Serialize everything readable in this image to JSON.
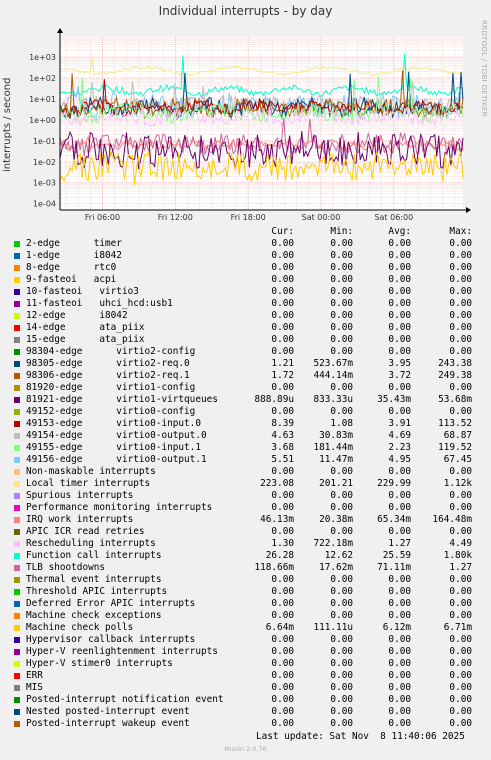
{
  "title": "Individual interrupts - by day",
  "side_text": "RRDTOOL / TOBI OETIKER",
  "ylabel": "interrupts / second",
  "columns": {
    "cur": "Cur:",
    "min": "Min:",
    "avg": "Avg:",
    "max": "Max:"
  },
  "footer": "Last update: Sat Nov  8 11:40:06 2025",
  "munin": "Munin 2.0.76",
  "legend": [
    {
      "name": "2-edge      timer",
      "color": "#00cc00",
      "cur": "0.00",
      "min": "0.00",
      "avg": "0.00",
      "max": "0.00"
    },
    {
      "name": "1-edge      i8042",
      "color": "#0066b3",
      "cur": "0.00",
      "min": "0.00",
      "avg": "0.00",
      "max": "0.00"
    },
    {
      "name": "8-edge      rtc0",
      "color": "#ff8000",
      "cur": "0.00",
      "min": "0.00",
      "avg": "0.00",
      "max": "0.00"
    },
    {
      "name": "9-fasteoi   acpi",
      "color": "#ffcc00",
      "cur": "0.00",
      "min": "0.00",
      "avg": "0.00",
      "max": "0.00"
    },
    {
      "name": "10-fasteoi   virtio3",
      "color": "#330099",
      "cur": "0.00",
      "min": "0.00",
      "avg": "0.00",
      "max": "0.00"
    },
    {
      "name": "11-fasteoi   uhci_hcd:usb1",
      "color": "#990099",
      "cur": "0.00",
      "min": "0.00",
      "avg": "0.00",
      "max": "0.00"
    },
    {
      "name": "12-edge      i8042",
      "color": "#ccff00",
      "cur": "0.00",
      "min": "0.00",
      "avg": "0.00",
      "max": "0.00"
    },
    {
      "name": "14-edge      ata_piix",
      "color": "#ff0000",
      "cur": "0.00",
      "min": "0.00",
      "avg": "0.00",
      "max": "0.00"
    },
    {
      "name": "15-edge      ata_piix",
      "color": "#808080",
      "cur": "0.00",
      "min": "0.00",
      "avg": "0.00",
      "max": "0.00"
    },
    {
      "name": "98304-edge      virtio2-config",
      "color": "#008f00",
      "cur": "0.00",
      "min": "0.00",
      "avg": "0.00",
      "max": "0.00"
    },
    {
      "name": "98305-edge      virtio2-req.0",
      "color": "#00487d",
      "cur": "1.21",
      "min": "523.67m",
      "avg": "3.95",
      "max": "243.38"
    },
    {
      "name": "98306-edge      virtio2-req.1",
      "color": "#b35a00",
      "cur": "1.72",
      "min": "444.14m",
      "avg": "3.72",
      "max": "249.38"
    },
    {
      "name": "81920-edge      virtio1-config",
      "color": "#b38f00",
      "cur": "0.00",
      "min": "0.00",
      "avg": "0.00",
      "max": "0.00"
    },
    {
      "name": "81921-edge      virtio1-virtqueues",
      "color": "#6b006b",
      "cur": "888.89u",
      "min": "833.33u",
      "avg": "35.43m",
      "max": "53.68m"
    },
    {
      "name": "49152-edge      virtio0-config",
      "color": "#8fb300",
      "cur": "0.00",
      "min": "0.00",
      "avg": "0.00",
      "max": "0.00"
    },
    {
      "name": "49153-edge      virtio0-input.0",
      "color": "#b30000",
      "cur": "8.39",
      "min": "1.08",
      "avg": "3.91",
      "max": "113.52"
    },
    {
      "name": "49154-edge      virtio0-output.0",
      "color": "#bebebe",
      "cur": "4.63",
      "min": "30.83m",
      "avg": "4.69",
      "max": "68.87"
    },
    {
      "name": "49155-edge      virtio0-input.1",
      "color": "#80ff80",
      "cur": "3.68",
      "min": "181.44m",
      "avg": "2.23",
      "max": "119.52"
    },
    {
      "name": "49156-edge      virtio0-output.1",
      "color": "#80c9ff",
      "cur": "5.51",
      "min": "11.47m",
      "avg": "4.95",
      "max": "67.45"
    },
    {
      "name": "Non-maskable interrupts",
      "color": "#ffc080",
      "cur": "0.00",
      "min": "0.00",
      "avg": "0.00",
      "max": "0.00"
    },
    {
      "name": "Local timer interrupts",
      "color": "#ffe680",
      "cur": "223.08",
      "min": "201.21",
      "avg": "229.99",
      "max": "1.12k"
    },
    {
      "name": "Spurious interrupts",
      "color": "#aa80ff",
      "cur": "0.00",
      "min": "0.00",
      "avg": "0.00",
      "max": "0.00"
    },
    {
      "name": "Performance monitoring interrupts",
      "color": "#ee00cc",
      "cur": "0.00",
      "min": "0.00",
      "avg": "0.00",
      "max": "0.00"
    },
    {
      "name": "IRQ work interrupts",
      "color": "#ff8080",
      "cur": "46.13m",
      "min": "20.38m",
      "avg": "65.34m",
      "max": "164.48m"
    },
    {
      "name": "APIC ICR read retries",
      "color": "#666600",
      "cur": "0.00",
      "min": "0.00",
      "avg": "0.00",
      "max": "0.00"
    },
    {
      "name": "Rescheduling interrupts",
      "color": "#ffbfff",
      "cur": "1.30",
      "min": "722.18m",
      "avg": "1.27",
      "max": "4.49"
    },
    {
      "name": "Function call interrupts",
      "color": "#00ffcc",
      "cur": "26.28",
      "min": "12.62",
      "avg": "25.59",
      "max": "1.80k"
    },
    {
      "name": "TLB shootdowns",
      "color": "#cc6699",
      "cur": "118.66m",
      "min": "17.62m",
      "avg": "71.11m",
      "max": "1.27"
    },
    {
      "name": "Thermal event interrupts",
      "color": "#999900",
      "cur": "0.00",
      "min": "0.00",
      "avg": "0.00",
      "max": "0.00"
    },
    {
      "name": "Threshold APIC interrupts",
      "color": "#00cc00",
      "cur": "0.00",
      "min": "0.00",
      "avg": "0.00",
      "max": "0.00"
    },
    {
      "name": "Deferred Error APIC interrupts",
      "color": "#0066b3",
      "cur": "0.00",
      "min": "0.00",
      "avg": "0.00",
      "max": "0.00"
    },
    {
      "name": "Machine check exceptions",
      "color": "#ff8000",
      "cur": "0.00",
      "min": "0.00",
      "avg": "0.00",
      "max": "0.00"
    },
    {
      "name": "Machine check polls",
      "color": "#ffcc00",
      "cur": "6.64m",
      "min": "111.11u",
      "avg": "6.12m",
      "max": "6.71m"
    },
    {
      "name": "Hypervisor callback interrupts",
      "color": "#330099",
      "cur": "0.00",
      "min": "0.00",
      "avg": "0.00",
      "max": "0.00"
    },
    {
      "name": "Hyper-V reenlightenment interrupts",
      "color": "#990099",
      "cur": "0.00",
      "min": "0.00",
      "avg": "0.00",
      "max": "0.00"
    },
    {
      "name": "Hyper-V stimer0 interrupts",
      "color": "#ccff00",
      "cur": "0.00",
      "min": "0.00",
      "avg": "0.00",
      "max": "0.00"
    },
    {
      "name": "ERR",
      "color": "#ff0000",
      "cur": "0.00",
      "min": "0.00",
      "avg": "0.00",
      "max": "0.00"
    },
    {
      "name": "MIS",
      "color": "#808080",
      "cur": "0.00",
      "min": "0.00",
      "avg": "0.00",
      "max": "0.00"
    },
    {
      "name": "Posted-interrupt notification event",
      "color": "#008f00",
      "cur": "0.00",
      "min": "0.00",
      "avg": "0.00",
      "max": "0.00"
    },
    {
      "name": "Nested posted-interrupt event",
      "color": "#00487d",
      "cur": "0.00",
      "min": "0.00",
      "avg": "0.00",
      "max": "0.00"
    },
    {
      "name": "Posted-interrupt wakeup event",
      "color": "#b35a00",
      "cur": "0.00",
      "min": "0.00",
      "avg": "0.00",
      "max": "0.00"
    }
  ],
  "chart_data": {
    "type": "line",
    "title": "Individual interrupts - by day",
    "ylabel": "interrupts / second",
    "yscale": "log",
    "ylim": [
      5e-05,
      10000
    ],
    "y_ticks": [
      "1e-04",
      "1e-03",
      "1e-02",
      "1e-01",
      "1e+00",
      "1e+01",
      "1e+02",
      "1e+03"
    ],
    "y_tick_values": [
      0.0001,
      0.001,
      0.01,
      0.1,
      1,
      10,
      100,
      1000
    ],
    "x_ticks": [
      "Fri 06:00",
      "Fri 12:00",
      "Fri 18:00",
      "Sat 00:00",
      "Sat 06:00"
    ],
    "x_tick_hours": [
      6,
      12,
      18,
      24,
      30
    ],
    "xlim_hours": [
      2.5,
      35.7
    ],
    "grid": true,
    "series": [
      {
        "name": "Local timer interrupts",
        "color": "#ffe680",
        "base": 229.99,
        "spike": 1120,
        "noise": 0.15,
        "period": 1.2
      },
      {
        "name": "Function call interrupts",
        "color": "#00ffcc",
        "base": 25.59,
        "spike": 1800,
        "noise": 0.3,
        "period": 0.8
      },
      {
        "name": "virtio0-output.1",
        "color": "#80c9ff",
        "base": 4.95,
        "spike": 67.45,
        "noise": 1.0,
        "period": 0.5
      },
      {
        "name": "virtio0-output.0",
        "color": "#bebebe",
        "base": 4.69,
        "spike": 68.87,
        "noise": 0.9,
        "period": 0.6
      },
      {
        "name": "virtio2-req.0",
        "color": "#00487d",
        "base": 3.95,
        "spike": 243.38,
        "noise": 0.8,
        "period": 0.7
      },
      {
        "name": "virtio2-req.1",
        "color": "#b35a00",
        "base": 3.72,
        "spike": 249.38,
        "noise": 0.8,
        "period": 0.9
      },
      {
        "name": "virtio0-input.0",
        "color": "#b30000",
        "base": 3.91,
        "spike": 113.52,
        "noise": 0.6,
        "period": 0.7
      },
      {
        "name": "virtio0-input.1",
        "color": "#80ff80",
        "base": 2.23,
        "spike": 119.52,
        "noise": 0.7,
        "period": 1.1
      },
      {
        "name": "Rescheduling interrupts",
        "color": "#ffbfff",
        "base": 1.27,
        "spike": 4.49,
        "noise": 0.5,
        "period": 0.9
      },
      {
        "name": "TLB shootdowns",
        "color": "#cc6699",
        "base": 0.07111,
        "spike": 1.27,
        "noise": 0.9,
        "period": 0.4
      },
      {
        "name": "IRQ work interrupts",
        "color": "#ff8080",
        "base": 0.06534,
        "spike": 0.1645,
        "noise": 0.3,
        "period": 0.3
      },
      {
        "name": "virtio1-virtqueues",
        "color": "#6b006b",
        "base": 0.03543,
        "spike": 0.05368,
        "noise": 1.6,
        "period": 0.25
      },
      {
        "name": "Machine check polls",
        "color": "#ffcc00",
        "base": 0.00612,
        "spike": 0.00671,
        "noise": 1.5,
        "period": 0.5
      }
    ]
  }
}
